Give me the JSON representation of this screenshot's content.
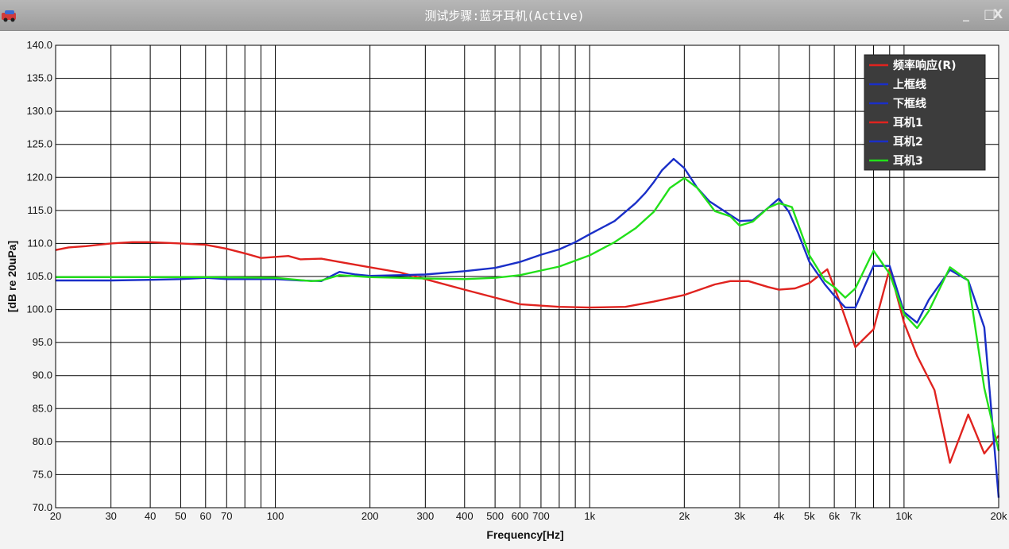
{
  "window": {
    "title": "测试步骤:蓝牙耳机(Active)",
    "minimize_glyph": "_",
    "maximize_glyph": "□",
    "close_glyph": "X",
    "app_icon": "app-icon"
  },
  "colors": {
    "red": "#e0231f",
    "blue": "#1a2fc8",
    "green": "#22e01a",
    "grid": "#000000",
    "legend_bg": "#3c3c3c"
  },
  "chart_data": {
    "type": "line",
    "xlabel": "Frequency[Hz]",
    "ylabel": "[dB re 20uPa]",
    "x_scale": "log",
    "xlim": [
      20,
      20000
    ],
    "ylim": [
      70,
      140
    ],
    "grid": true,
    "legend_position": "top-right",
    "y_ticks": [
      "140.0",
      "135.0",
      "130.0",
      "125.0",
      "120.0",
      "115.0",
      "110.0",
      "105.0",
      "100.0",
      "95.0",
      "90.0",
      "85.0",
      "80.0",
      "75.0",
      "70.0"
    ],
    "x_ticks": [
      {
        "v": 20,
        "label": "20"
      },
      {
        "v": 30,
        "label": "30"
      },
      {
        "v": 40,
        "label": "40"
      },
      {
        "v": 50,
        "label": "50"
      },
      {
        "v": 60,
        "label": "60"
      },
      {
        "v": 70,
        "label": "70"
      },
      {
        "v": 100,
        "label": "100"
      },
      {
        "v": 200,
        "label": "200"
      },
      {
        "v": 300,
        "label": "300"
      },
      {
        "v": 400,
        "label": "400"
      },
      {
        "v": 500,
        "label": "500"
      },
      {
        "v": 600,
        "label": "600"
      },
      {
        "v": 700,
        "label": "700"
      },
      {
        "v": 1000,
        "label": "1k"
      },
      {
        "v": 2000,
        "label": "2k"
      },
      {
        "v": 3000,
        "label": "3k"
      },
      {
        "v": 4000,
        "label": "4k"
      },
      {
        "v": 5000,
        "label": "5k"
      },
      {
        "v": 6000,
        "label": "6k"
      },
      {
        "v": 7000,
        "label": "7k"
      },
      {
        "v": 10000,
        "label": "10k"
      },
      {
        "v": 20000,
        "label": "20k"
      }
    ],
    "series": [
      {
        "name": "频率响应(R)",
        "color": "#e0231f",
        "points": [
          [
            20,
            109
          ],
          [
            22,
            109.4
          ],
          [
            25,
            109.6
          ],
          [
            30,
            110
          ],
          [
            35,
            110.2
          ],
          [
            40,
            110.2
          ],
          [
            50,
            110
          ],
          [
            60,
            109.8
          ],
          [
            70,
            109.2
          ],
          [
            80,
            108.5
          ],
          [
            90,
            107.8
          ],
          [
            110,
            108.1
          ],
          [
            120,
            107.6
          ],
          [
            140,
            107.7
          ],
          [
            160,
            107.2
          ],
          [
            200,
            106.4
          ],
          [
            250,
            105.6
          ],
          [
            300,
            104.6
          ],
          [
            400,
            103
          ],
          [
            500,
            101.8
          ],
          [
            600,
            100.8
          ],
          [
            800,
            100.4
          ],
          [
            1000,
            100.3
          ],
          [
            1300,
            100.4
          ],
          [
            1600,
            101.2
          ],
          [
            2000,
            102.2
          ],
          [
            2500,
            103.8
          ],
          [
            2800,
            104.3
          ],
          [
            3200,
            104.3
          ],
          [
            3700,
            103.4
          ],
          [
            4000,
            103
          ],
          [
            4500,
            103.2
          ],
          [
            5000,
            104
          ],
          [
            5700,
            106.1
          ],
          [
            6200,
            101.6
          ],
          [
            7000,
            94.3
          ],
          [
            8000,
            97
          ],
          [
            9000,
            106.2
          ],
          [
            10000,
            98
          ],
          [
            11000,
            93
          ],
          [
            12500,
            87.8
          ],
          [
            14000,
            76.8
          ],
          [
            16000,
            84.1
          ],
          [
            18000,
            78.2
          ],
          [
            20000,
            80.9
          ]
        ]
      },
      {
        "name": "上框线",
        "color": "#1a2fc8",
        "dashed_hidden": true,
        "points": []
      },
      {
        "name": "下框线",
        "color": "#1a2fc8",
        "dashed_hidden": true,
        "points": []
      },
      {
        "name": "耳机1",
        "color": "#e0231f",
        "points": []
      },
      {
        "name": "耳机2",
        "color": "#1a2fc8",
        "points": [
          [
            20,
            104.4
          ],
          [
            30,
            104.4
          ],
          [
            40,
            104.5
          ],
          [
            50,
            104.6
          ],
          [
            60,
            104.8
          ],
          [
            70,
            104.6
          ],
          [
            100,
            104.6
          ],
          [
            120,
            104.4
          ],
          [
            140,
            104.3
          ],
          [
            160,
            105.7
          ],
          [
            180,
            105.3
          ],
          [
            200,
            105.1
          ],
          [
            300,
            105.3
          ],
          [
            400,
            105.8
          ],
          [
            500,
            106.3
          ],
          [
            600,
            107.2
          ],
          [
            700,
            108.3
          ],
          [
            800,
            109.1
          ],
          [
            900,
            110.2
          ],
          [
            1000,
            111.4
          ],
          [
            1200,
            113.4
          ],
          [
            1400,
            116.1
          ],
          [
            1500,
            117.6
          ],
          [
            1600,
            119.3
          ],
          [
            1700,
            121.1
          ],
          [
            1850,
            122.8
          ],
          [
            2000,
            121.4
          ],
          [
            2200,
            118.4
          ],
          [
            2400,
            116.4
          ],
          [
            2700,
            114.8
          ],
          [
            3000,
            113.4
          ],
          [
            3300,
            113.5
          ],
          [
            3700,
            115.4
          ],
          [
            4000,
            116.8
          ],
          [
            4300,
            114.8
          ],
          [
            4600,
            111.6
          ],
          [
            5000,
            107.2
          ],
          [
            5600,
            103.8
          ],
          [
            6000,
            102.1
          ],
          [
            6500,
            100.3
          ],
          [
            7000,
            100.3
          ],
          [
            7500,
            103.6
          ],
          [
            8000,
            106.6
          ],
          [
            9000,
            106.6
          ],
          [
            10000,
            99.6
          ],
          [
            11000,
            98
          ],
          [
            12000,
            101.5
          ],
          [
            14000,
            106
          ],
          [
            16000,
            104.4
          ],
          [
            18000,
            97.3
          ],
          [
            20000,
            71.5
          ]
        ]
      },
      {
        "name": "耳机3",
        "color": "#22e01a",
        "points": [
          [
            20,
            104.9
          ],
          [
            40,
            104.9
          ],
          [
            60,
            104.9
          ],
          [
            100,
            104.8
          ],
          [
            130,
            104.3
          ],
          [
            140,
            104.4
          ],
          [
            160,
            105.2
          ],
          [
            200,
            104.9
          ],
          [
            300,
            104.7
          ],
          [
            400,
            104.6
          ],
          [
            500,
            104.8
          ],
          [
            600,
            105.2
          ],
          [
            700,
            105.9
          ],
          [
            800,
            106.5
          ],
          [
            1000,
            108.2
          ],
          [
            1200,
            110.2
          ],
          [
            1400,
            112.3
          ],
          [
            1600,
            114.8
          ],
          [
            1800,
            118.4
          ],
          [
            2000,
            119.9
          ],
          [
            2200,
            118.4
          ],
          [
            2500,
            114.9
          ],
          [
            2800,
            114.1
          ],
          [
            3000,
            112.7
          ],
          [
            3300,
            113.3
          ],
          [
            3700,
            115.4
          ],
          [
            4000,
            116.1
          ],
          [
            4400,
            115.5
          ],
          [
            5000,
            108.2
          ],
          [
            5600,
            104.4
          ],
          [
            6000,
            103.4
          ],
          [
            6500,
            101.8
          ],
          [
            7000,
            103.2
          ],
          [
            8000,
            108.9
          ],
          [
            9000,
            105.4
          ],
          [
            10000,
            99.3
          ],
          [
            11000,
            97.2
          ],
          [
            12000,
            99.8
          ],
          [
            14000,
            106.4
          ],
          [
            16000,
            104.4
          ],
          [
            18000,
            88.1
          ],
          [
            20000,
            78.6
          ]
        ]
      }
    ]
  }
}
